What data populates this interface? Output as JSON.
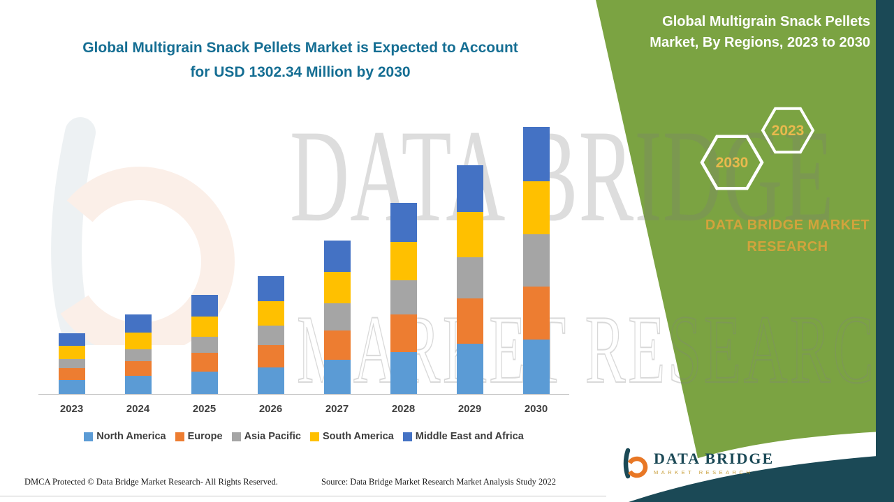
{
  "title": {
    "line1": "Global Multigrain Snack Pellets Market is Expected to Account",
    "line2": "for USD 1302.34 Million by 2030"
  },
  "right_panel": {
    "heading": "Global Multigrain Snack Pellets Market, By Regions, 2023 to 2030",
    "hexagons": [
      {
        "year": "2030"
      },
      {
        "year": "2023"
      }
    ],
    "brand": "DATA BRIDGE MARKET RESEARCH"
  },
  "watermarks": {
    "line1": "DATA BRIDGE",
    "line2": "MARKET RESEARCH"
  },
  "chart_data": {
    "type": "bar",
    "stacked": true,
    "title": "Global Multigrain Snack Pellets Market is Expected to Account for USD 1302.34 Million by 2030",
    "categories": [
      "2023",
      "2024",
      "2025",
      "2026",
      "2027",
      "2028",
      "2029",
      "2030"
    ],
    "series": [
      {
        "name": "North America",
        "color": "#5B9BD5",
        "values": [
          68.12,
          88.45,
          110.23,
          130.56,
          165.78,
          205.34,
          245.67,
          265.89
        ]
      },
      {
        "name": "Europe",
        "color": "#ED7D31",
        "values": [
          58.34,
          70.21,
          90.45,
          108.67,
          145.23,
          182.45,
          220.34,
          258.12
        ]
      },
      {
        "name": "Asia Pacific",
        "color": "#A5A5A5",
        "values": [
          45.23,
          60.34,
          78.12,
          95.45,
          130.56,
          165.23,
          200.45,
          255.34
        ]
      },
      {
        "name": "South America",
        "color": "#FFC000",
        "values": [
          61.45,
          80.12,
          98.34,
          118.23,
          152.45,
          188.67,
          222.56,
          256.45
        ]
      },
      {
        "name": "Middle East and Africa",
        "color": "#4472C4",
        "values": [
          64.21,
          89.34,
          106.89,
          122.45,
          154.32,
          190.56,
          226.34,
          266.54
        ]
      }
    ],
    "total_2030": 1302.34,
    "unit": "USD Million",
    "xlabel": "",
    "ylabel": "",
    "ylim": [
      0,
      1302.34
    ],
    "y_axis_visible": false,
    "grid": false,
    "legend_position": "bottom"
  },
  "footer": {
    "dmca": "DMCA Protected © Data Bridge Market Research- All Rights Reserved.",
    "source": "Source: Data Bridge Market Research Market Analysis Study 2022"
  },
  "logo": {
    "name": "DATA BRIDGE",
    "tagline": "MARKET RESEARCH"
  },
  "colors": {
    "panel_green": "#7BA342",
    "dark_teal": "#1B4956",
    "title_teal": "#156E93",
    "brand_gold": "#D2A33C",
    "hex_year_gold": "#E9B94E"
  }
}
